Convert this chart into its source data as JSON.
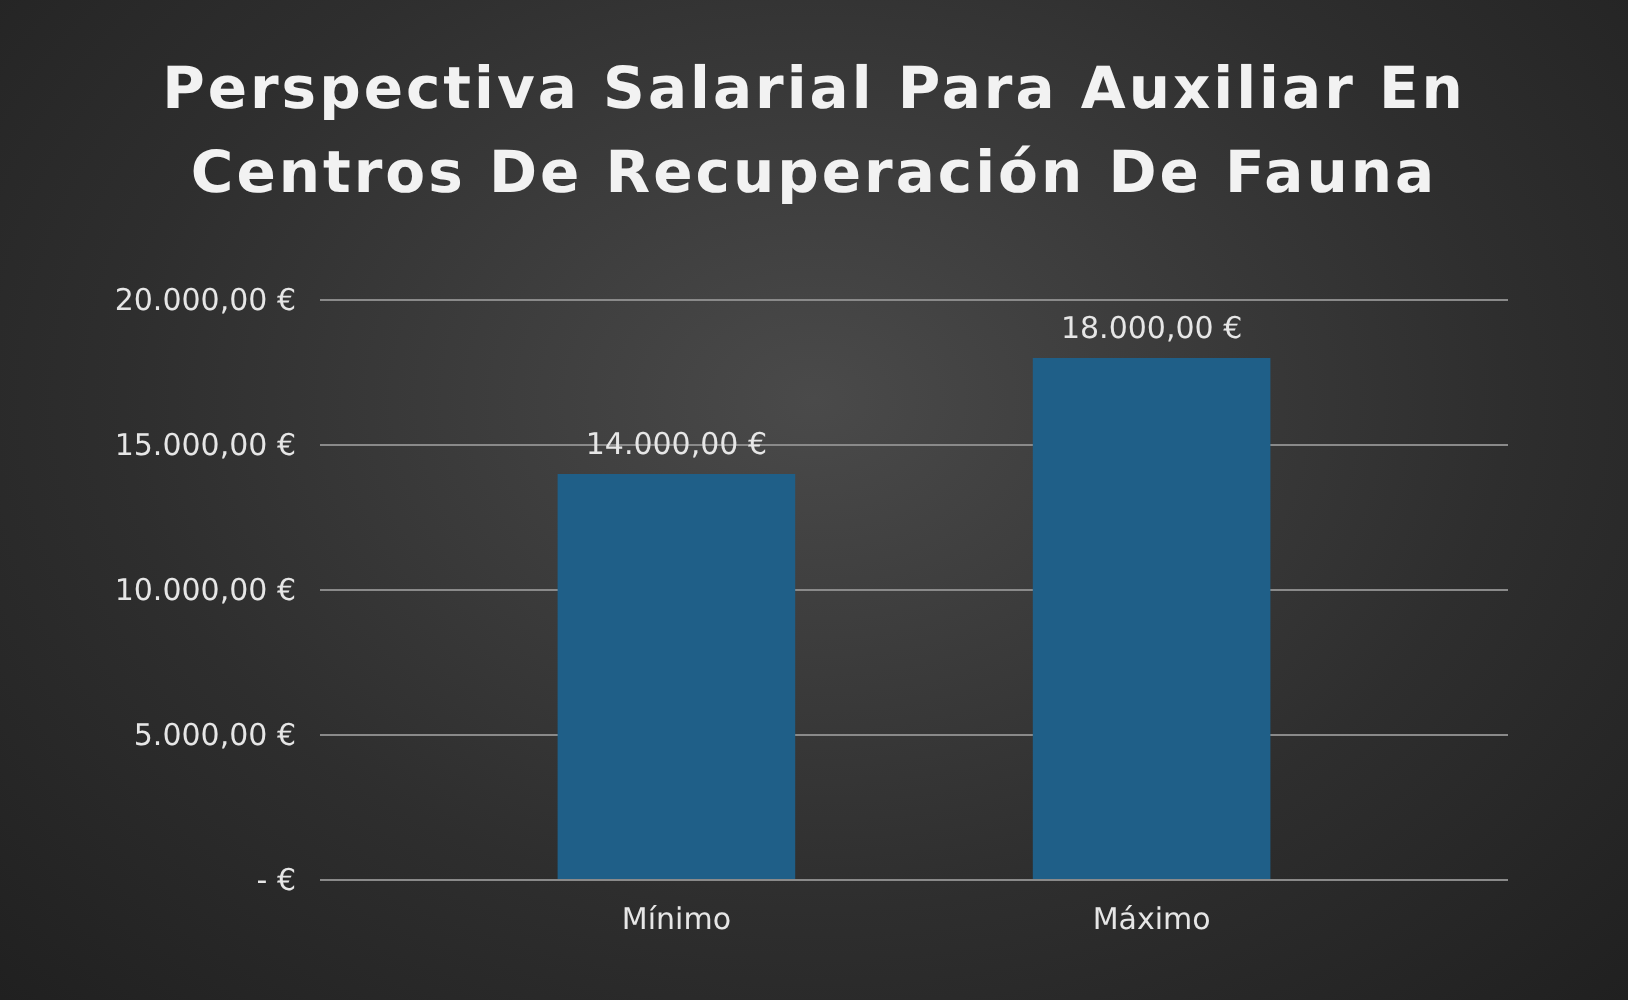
{
  "chart_data": {
    "type": "bar",
    "title": "Perspectiva Salarial Para Auxiliar En Centros De Recuperación De Fauna",
    "categories": [
      "Mínimo",
      "Máximo"
    ],
    "values": [
      14000,
      18000
    ],
    "color": "#1f5f88",
    "value_labels": [
      "14.000,00 €",
      "18.000,00 €"
    ],
    "ylim": [
      0,
      20000
    ],
    "yticks": [
      {
        "value": 0,
        "label": "-  €"
      },
      {
        "value": 5000,
        "label": "5.000,00 €"
      },
      {
        "value": 10000,
        "label": "10.000,00 €"
      },
      {
        "value": 15000,
        "label": "15.000,00 €"
      },
      {
        "value": 20000,
        "label": "20.000,00 €"
      }
    ],
    "grid": "y"
  }
}
